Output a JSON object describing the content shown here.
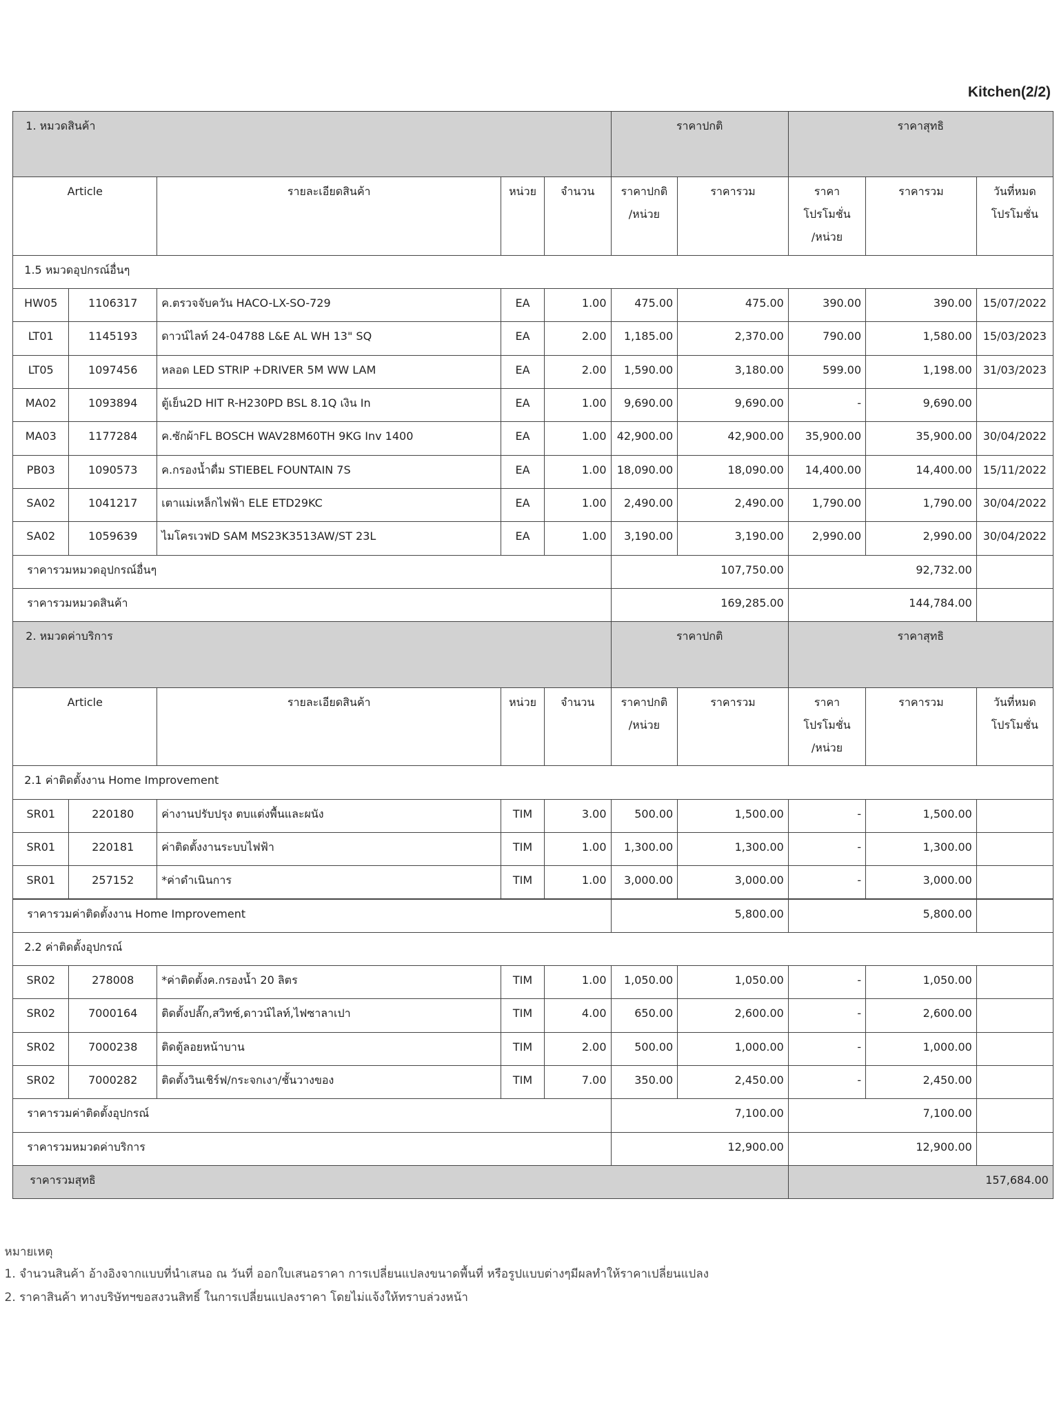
{
  "page_label": "Kitchen(2/2)",
  "sections": [
    {
      "title": "1. หมวดสินค้า",
      "regular_price_header": "ราคาปกติ",
      "net_price_header": "ราคาสุทธิ",
      "columns": [
        [
          "Article"
        ],
        [
          "รายละเอียดสินค้า"
        ],
        [
          "หน่วย"
        ],
        [
          "จำนวน"
        ],
        [
          "ราคาปกติ",
          "/หน่วย"
        ],
        [
          "ราคารวม"
        ],
        [
          "ราคา",
          "โปรโมชั่น",
          "/หน่วย"
        ],
        [
          "ราคารวม"
        ],
        [
          "วันที่หมด",
          "โปรโมชั่น"
        ]
      ],
      "groups": [
        {
          "title": "1.5 หมวดอุปกรณ์อื่นๆ",
          "rows": [
            [
              "HW05",
              "1106317",
              "ค.ตรวจจับควัน HACO-LX-SO-729",
              "EA",
              "1.00",
              "475.00",
              "475.00",
              "390.00",
              "390.00",
              "15/07/2022"
            ],
            [
              "LT01",
              "1145193",
              "ดาวน์ไลท์ 24-04788 L&E AL WH 13\" SQ",
              "EA",
              "2.00",
              "1,185.00",
              "2,370.00",
              "790.00",
              "1,580.00",
              "15/03/2023"
            ],
            [
              "LT05",
              "1097456",
              "หลอด LED STRIP +DRIVER 5M WW LAM",
              "EA",
              "2.00",
              "1,590.00",
              "3,180.00",
              "599.00",
              "1,198.00",
              "31/03/2023"
            ],
            [
              "MA02",
              "1093894",
              "ตู้เย็น2D HIT R-H230PD BSL  8.1Q เงิน In",
              "EA",
              "1.00",
              "9,690.00",
              "9,690.00",
              "-",
              "9,690.00",
              null
            ],
            [
              "MA03",
              "1177284",
              "ค.ซักผ้าFL BOSCH WAV28M60TH 9KG Inv 1400",
              "EA",
              "1.00",
              "42,900.00",
              "42,900.00",
              "35,900.00",
              "35,900.00",
              "30/04/2022"
            ],
            [
              "PB03",
              "1090573",
              "ค.กรองน้ำดื่ม STIEBEL FOUNTAIN 7S",
              "EA",
              "1.00",
              "18,090.00",
              "18,090.00",
              "14,400.00",
              "14,400.00",
              "15/11/2022"
            ],
            [
              "SA02",
              "1041217",
              "เตาแม่เหล็กไฟฟ้า ELE ETD29KC",
              "EA",
              "1.00",
              "2,490.00",
              "2,490.00",
              "1,790.00",
              "1,790.00",
              "30/04/2022"
            ],
            [
              "SA02",
              "1059639",
              "ไมโครเวฟD SAM MS23K3513AW/ST 23L",
              "EA",
              "1.00",
              "3,190.00",
              "3,190.00",
              "2,990.00",
              "2,990.00",
              "30/04/2022"
            ]
          ],
          "subtotal": {
            "label": "ราคารวมหมวดอุปกรณ์อื่นๆ",
            "total": "107,750.00",
            "net_total": "92,732.00"
          }
        }
      ],
      "total": {
        "label": "ราคารวมหมวดสินค้า",
        "total": "169,285.00",
        "net_total": "144,784.00"
      }
    },
    {
      "title": "2. หมวดค่าบริการ",
      "regular_price_header": "ราคาปกติ",
      "net_price_header": "ราคาสุทธิ",
      "columns": [
        [
          "Article"
        ],
        [
          "รายละเอียดสินค้า"
        ],
        [
          "หน่วย"
        ],
        [
          "จำนวน"
        ],
        [
          "ราคาปกติ",
          "/หน่วย"
        ],
        [
          "ราคารวม"
        ],
        [
          "ราคา",
          "โปรโมชั่น",
          "/หน่วย"
        ],
        [
          "ราคารวม"
        ],
        [
          "วันที่หมด",
          "โปรโมชั่น"
        ]
      ],
      "groups": [
        {
          "title": "2.1 ค่าติดตั้งงาน Home Improvement",
          "rows": [
            [
              "SR01",
              "220180",
              "ค่างานปรับปรุง ตบแต่งพื้นและผนัง",
              "TIM",
              "3.00",
              "500.00",
              "1,500.00",
              "-",
              "1,500.00",
              null
            ],
            [
              "SR01",
              "220181",
              "ค่าติดตั้งงานระบบไฟฟ้า",
              "TIM",
              "1.00",
              "1,300.00",
              "1,300.00",
              "-",
              "1,300.00",
              null
            ],
            [
              "SR01",
              "257152",
              "*ค่าดำเนินการ",
              "TIM",
              "1.00",
              "3,000.00",
              "3,000.00",
              "-",
              "3,000.00",
              null
            ]
          ],
          "subtotal": {
            "label": "ราคารวมค่าติดตั้งงาน Home Improvement",
            "total": "5,800.00",
            "net_total": "5,800.00"
          }
        },
        {
          "title": "2.2 ค่าติดตั้งอุปกรณ์",
          "rows": [
            [
              "SR02",
              "278008",
              "*ค่าติดตั้งค.กรองน้ำ 20 ลิตร",
              "TIM",
              "1.00",
              "1,050.00",
              "1,050.00",
              "-",
              "1,050.00",
              null
            ],
            [
              "SR02",
              "7000164",
              "ติดตั้งปลั๊ก,สวิทช์,ดาวน์ไลท์,ไฟซาลาเปา",
              "TIM",
              "4.00",
              "650.00",
              "2,600.00",
              "-",
              "2,600.00",
              null
            ],
            [
              "SR02",
              "7000238",
              "ติดตู้ลอยหน้าบาน",
              "TIM",
              "2.00",
              "500.00",
              "1,000.00",
              "-",
              "1,000.00",
              null
            ],
            [
              "SR02",
              "7000282",
              "ติดตั้งวินเชิร์ฟ/กระจกเงา/ชั้นวางของ",
              "TIM",
              "7.00",
              "350.00",
              "2,450.00",
              "-",
              "2,450.00",
              null
            ]
          ],
          "subtotal": {
            "label": "ราคารวมค่าติดตั้งอุปกรณ์",
            "total": "7,100.00",
            "net_total": "7,100.00"
          }
        }
      ],
      "total": {
        "label": "ราคารวมหมวดค่าบริการ",
        "total": "12,900.00",
        "net_total": "12,900.00"
      }
    }
  ],
  "grand_total": {
    "label": "ราคารวมสุทธิ",
    "value": "157,684.00"
  },
  "notes": {
    "title": "หมายเหตุ",
    "items": [
      "1. จำนวนสินค้า อ้างอิงจากแบบที่นำเสนอ ณ วันที่ ออกใบเสนอราคา การเปลี่ยนแปลงขนาดพื้นที่ หรือรูปแบบต่างๆมีผลทำให้ราคาเปลี่ยนแปลง",
      "2. ราคาสินค้า ทางบริษัทฯขอสงวนสิทธิ์ ในการเปลี่ยนแปลงราคา โดยไม่แจ้งให้ทราบล่วงหน้า"
    ]
  }
}
